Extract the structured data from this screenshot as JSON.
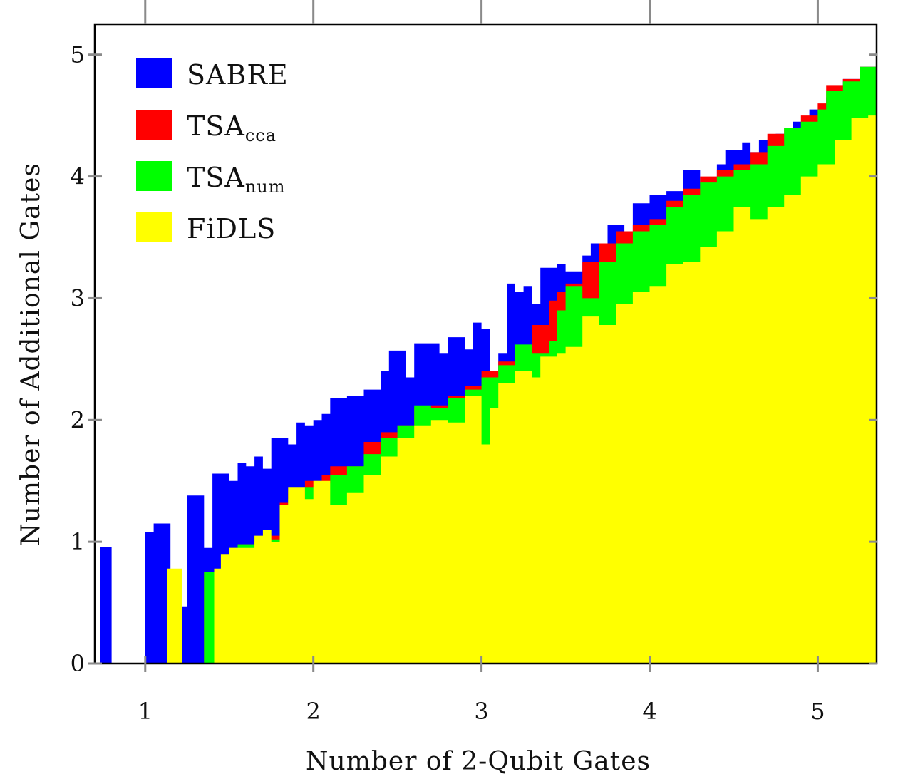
{
  "chart_data": {
    "type": "area",
    "title": "",
    "xlabel": "Number of 2-Qubit Gates",
    "ylabel": "Number of Additional Gates",
    "xlim": [
      0.7,
      5.35
    ],
    "ylim": [
      0,
      5.25
    ],
    "xticks": [
      "1",
      "2",
      "3",
      "4",
      "5"
    ],
    "yticks": [
      "0",
      "1",
      "2",
      "3",
      "4",
      "5"
    ],
    "grid": false,
    "legend_position": "top-left",
    "colors": {
      "SABRE": "#0000ff",
      "TSA_cca": "#ff0000",
      "TSA_num": "#00ff00",
      "FiDLS": "#ffff00"
    },
    "legend": [
      {
        "label": "SABRE",
        "base": "SABRE",
        "sub": "",
        "color": "#0000ff"
      },
      {
        "label": "TSAcca",
        "base": "TSA",
        "sub": "cca",
        "color": "#ff0000"
      },
      {
        "label": "TSAnum",
        "base": "TSA",
        "sub": "num",
        "color": "#00ff00"
      },
      {
        "label": "FiDLS",
        "base": "FiDLS",
        "sub": "",
        "color": "#ffff00"
      }
    ],
    "series": [
      {
        "name": "SABRE",
        "points": [
          [
            0.73,
            0.96
          ],
          [
            0.8,
            0
          ],
          [
            1.0,
            1.08
          ],
          [
            1.05,
            1.15
          ],
          [
            1.15,
            0
          ],
          [
            1.2,
            0.47
          ],
          [
            1.25,
            1.38
          ],
          [
            1.35,
            0.95
          ],
          [
            1.4,
            1.56
          ],
          [
            1.5,
            1.5
          ],
          [
            1.55,
            1.65
          ],
          [
            1.6,
            1.62
          ],
          [
            1.65,
            1.7
          ],
          [
            1.7,
            1.6
          ],
          [
            1.75,
            1.85
          ],
          [
            1.85,
            1.8
          ],
          [
            1.9,
            1.98
          ],
          [
            1.95,
            1.95
          ],
          [
            2.0,
            2.0
          ],
          [
            2.05,
            2.05
          ],
          [
            2.1,
            2.18
          ],
          [
            2.2,
            2.2
          ],
          [
            2.3,
            2.25
          ],
          [
            2.4,
            2.4
          ],
          [
            2.45,
            2.57
          ],
          [
            2.55,
            2.35
          ],
          [
            2.6,
            2.63
          ],
          [
            2.7,
            2.63
          ],
          [
            2.75,
            2.55
          ],
          [
            2.8,
            2.68
          ],
          [
            2.9,
            2.58
          ],
          [
            2.95,
            2.8
          ],
          [
            3.0,
            2.75
          ],
          [
            3.05,
            2.4
          ],
          [
            3.1,
            2.55
          ],
          [
            3.15,
            3.12
          ],
          [
            3.2,
            3.05
          ],
          [
            3.25,
            3.1
          ],
          [
            3.3,
            2.95
          ],
          [
            3.35,
            3.25
          ],
          [
            3.45,
            3.28
          ],
          [
            3.5,
            3.22
          ],
          [
            3.6,
            3.35
          ],
          [
            3.65,
            3.45
          ],
          [
            3.75,
            3.6
          ],
          [
            3.85,
            3.55
          ],
          [
            3.9,
            3.78
          ],
          [
            4.0,
            3.85
          ],
          [
            4.1,
            3.88
          ],
          [
            4.2,
            4.05
          ],
          [
            4.3,
            3.95
          ],
          [
            4.4,
            4.1
          ],
          [
            4.45,
            4.22
          ],
          [
            4.55,
            4.28
          ],
          [
            4.6,
            4.2
          ],
          [
            4.65,
            4.3
          ],
          [
            4.75,
            4.35
          ],
          [
            4.85,
            4.45
          ],
          [
            4.95,
            4.55
          ],
          [
            5.05,
            4.65
          ],
          [
            5.15,
            4.8
          ],
          [
            5.25,
            4.9
          ],
          [
            5.35,
            4.98
          ]
        ]
      },
      {
        "name": "TSAcca",
        "points": [
          [
            0.73,
            0
          ],
          [
            1.25,
            0
          ],
          [
            1.35,
            0.75
          ],
          [
            1.4,
            0.75
          ],
          [
            1.5,
            0.95
          ],
          [
            1.55,
            0.98
          ],
          [
            1.65,
            1.0
          ],
          [
            1.7,
            1.05
          ],
          [
            1.8,
            1.32
          ],
          [
            1.85,
            1.42
          ],
          [
            1.95,
            1.5
          ],
          [
            2.0,
            1.5
          ],
          [
            2.05,
            1.55
          ],
          [
            2.1,
            1.62
          ],
          [
            2.2,
            1.62
          ],
          [
            2.3,
            1.82
          ],
          [
            2.4,
            1.9
          ],
          [
            2.5,
            1.95
          ],
          [
            2.6,
            2.1
          ],
          [
            2.7,
            2.12
          ],
          [
            2.8,
            2.2
          ],
          [
            2.9,
            2.28
          ],
          [
            3.0,
            2.4
          ],
          [
            3.1,
            2.48
          ],
          [
            3.2,
            2.6
          ],
          [
            3.3,
            2.78
          ],
          [
            3.4,
            2.98
          ],
          [
            3.45,
            3.05
          ],
          [
            3.5,
            3.12
          ],
          [
            3.6,
            3.3
          ],
          [
            3.7,
            3.45
          ],
          [
            3.8,
            3.55
          ],
          [
            3.9,
            3.6
          ],
          [
            4.0,
            3.65
          ],
          [
            4.1,
            3.8
          ],
          [
            4.2,
            3.9
          ],
          [
            4.3,
            4.0
          ],
          [
            4.4,
            4.05
          ],
          [
            4.5,
            4.1
          ],
          [
            4.6,
            4.2
          ],
          [
            4.7,
            4.35
          ],
          [
            4.8,
            4.4
          ],
          [
            4.9,
            4.5
          ],
          [
            5.0,
            4.6
          ],
          [
            5.05,
            4.75
          ],
          [
            5.15,
            4.8
          ],
          [
            5.25,
            4.9
          ],
          [
            5.35,
            4.95
          ]
        ]
      },
      {
        "name": "TSAnum",
        "points": [
          [
            0.73,
            0
          ],
          [
            1.25,
            0
          ],
          [
            1.35,
            0.75
          ],
          [
            1.4,
            0.75
          ],
          [
            1.5,
            0.95
          ],
          [
            1.55,
            0.98
          ],
          [
            1.65,
            1.0
          ],
          [
            1.7,
            1.02
          ],
          [
            1.8,
            1.25
          ],
          [
            1.85,
            1.35
          ],
          [
            1.95,
            1.45
          ],
          [
            2.0,
            1.45
          ],
          [
            2.05,
            1.48
          ],
          [
            2.1,
            1.55
          ],
          [
            2.2,
            1.62
          ],
          [
            2.3,
            1.72
          ],
          [
            2.4,
            1.85
          ],
          [
            2.5,
            1.95
          ],
          [
            2.6,
            2.12
          ],
          [
            2.7,
            2.1
          ],
          [
            2.8,
            2.18
          ],
          [
            2.9,
            2.25
          ],
          [
            3.0,
            2.35
          ],
          [
            3.1,
            2.45
          ],
          [
            3.2,
            2.62
          ],
          [
            3.3,
            2.55
          ],
          [
            3.4,
            2.65
          ],
          [
            3.45,
            2.9
          ],
          [
            3.5,
            3.1
          ],
          [
            3.6,
            3.0
          ],
          [
            3.7,
            3.3
          ],
          [
            3.8,
            3.45
          ],
          [
            3.9,
            3.55
          ],
          [
            4.0,
            3.6
          ],
          [
            4.1,
            3.75
          ],
          [
            4.2,
            3.85
          ],
          [
            4.3,
            3.95
          ],
          [
            4.4,
            4.0
          ],
          [
            4.5,
            4.05
          ],
          [
            4.6,
            4.1
          ],
          [
            4.7,
            4.25
          ],
          [
            4.8,
            4.4
          ],
          [
            4.9,
            4.45
          ],
          [
            5.0,
            4.55
          ],
          [
            5.05,
            4.7
          ],
          [
            5.15,
            4.78
          ],
          [
            5.25,
            4.9
          ],
          [
            5.35,
            4.95
          ]
        ]
      },
      {
        "name": "FiDLS",
        "points": [
          [
            0.73,
            0
          ],
          [
            1.12,
            0
          ],
          [
            1.13,
            0.78
          ],
          [
            1.2,
            0.78
          ],
          [
            1.22,
            0
          ],
          [
            1.4,
            0
          ],
          [
            1.41,
            0.78
          ],
          [
            1.45,
            0.9
          ],
          [
            1.5,
            0.95
          ],
          [
            1.6,
            0.95
          ],
          [
            1.65,
            1.05
          ],
          [
            1.7,
            1.1
          ],
          [
            1.75,
            1.0
          ],
          [
            1.8,
            1.3
          ],
          [
            1.85,
            1.45
          ],
          [
            1.95,
            1.35
          ],
          [
            2.0,
            1.5
          ],
          [
            2.1,
            1.3
          ],
          [
            2.2,
            1.4
          ],
          [
            2.3,
            1.55
          ],
          [
            2.4,
            1.7
          ],
          [
            2.5,
            1.85
          ],
          [
            2.6,
            1.95
          ],
          [
            2.7,
            2.0
          ],
          [
            2.8,
            1.98
          ],
          [
            2.9,
            2.2
          ],
          [
            3.0,
            1.8
          ],
          [
            3.05,
            2.1
          ],
          [
            3.1,
            2.3
          ],
          [
            3.2,
            2.4
          ],
          [
            3.3,
            2.35
          ],
          [
            3.35,
            2.52
          ],
          [
            3.45,
            2.55
          ],
          [
            3.5,
            2.6
          ],
          [
            3.6,
            2.85
          ],
          [
            3.7,
            2.78
          ],
          [
            3.8,
            2.95
          ],
          [
            3.9,
            3.05
          ],
          [
            4.0,
            3.1
          ],
          [
            4.1,
            3.28
          ],
          [
            4.2,
            3.3
          ],
          [
            4.3,
            3.42
          ],
          [
            4.4,
            3.55
          ],
          [
            4.5,
            3.75
          ],
          [
            4.6,
            3.65
          ],
          [
            4.7,
            3.75
          ],
          [
            4.8,
            3.85
          ],
          [
            4.9,
            4.0
          ],
          [
            5.0,
            4.1
          ],
          [
            5.1,
            4.3
          ],
          [
            5.2,
            4.48
          ],
          [
            5.3,
            4.5
          ],
          [
            5.35,
            4.62
          ]
        ]
      }
    ]
  }
}
